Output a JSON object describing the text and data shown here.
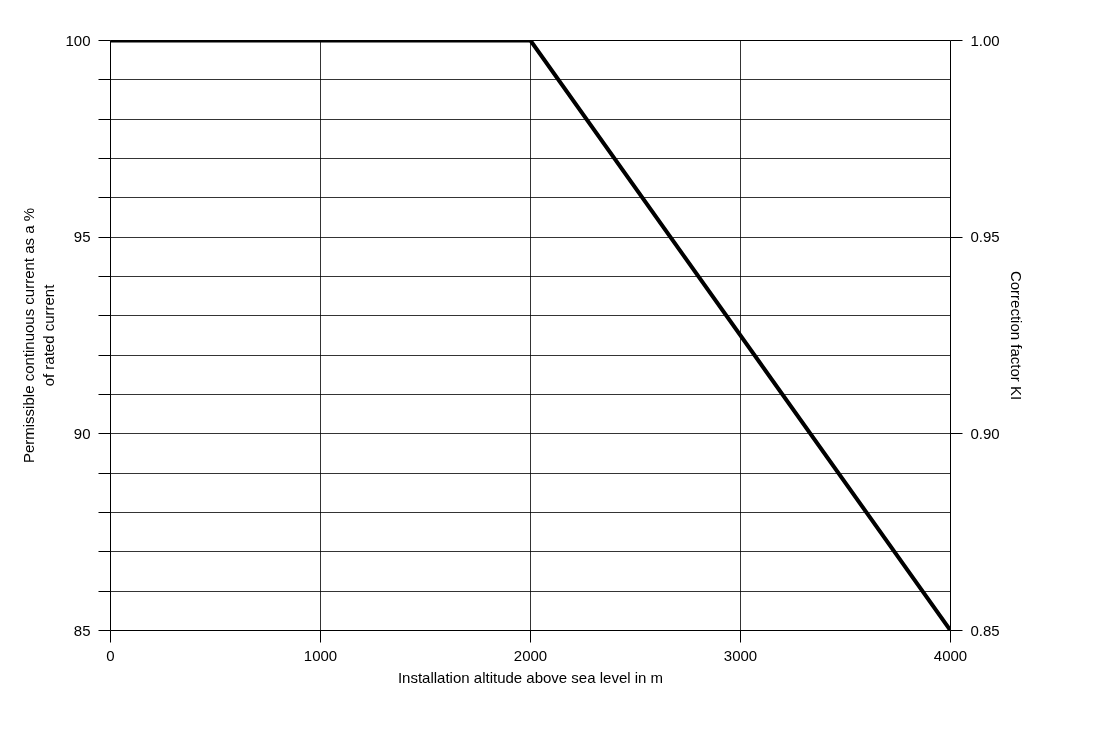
{
  "chart_data": {
    "type": "line",
    "xlabel": "Installation altitude above sea level in m",
    "ylabel": "Permissible continuous current as a %\nof rated current",
    "y2label": "Correction factor KI",
    "x": [
      0,
      2000,
      4000
    ],
    "series": [
      {
        "color": "#000000",
        "values": [
          100,
          100,
          85
        ]
      }
    ],
    "xlim": [
      0,
      4000
    ],
    "xticks": [
      0,
      1000,
      2000,
      3000,
      4000
    ],
    "ylim": [
      85,
      100
    ],
    "yticks": [
      85,
      {
        "value": 86,
        "label": null
      },
      {
        "value": 87,
        "label": null
      },
      {
        "value": 88,
        "label": null
      },
      {
        "value": 89,
        "label": null
      },
      90,
      {
        "value": 91,
        "label": null
      },
      {
        "value": 92,
        "label": null
      },
      {
        "value": 93,
        "label": null
      },
      {
        "value": 94,
        "label": null
      },
      95,
      {
        "value": 96,
        "label": null
      },
      {
        "value": 97,
        "label": null
      },
      {
        "value": 98,
        "label": null
      },
      {
        "value": 99,
        "label": null
      },
      100
    ],
    "y2lim": [
      0.85,
      1.0
    ],
    "y2ticks": [
      {
        "value": 0.85,
        "label": "0.85"
      },
      {
        "value": 0.9,
        "label": "0.90"
      },
      {
        "value": 0.95,
        "label": "0.95"
      },
      {
        "value": 1.0,
        "label": "1.00"
      }
    ],
    "grid": true,
    "marker": "none",
    "line_style": "solid"
  }
}
